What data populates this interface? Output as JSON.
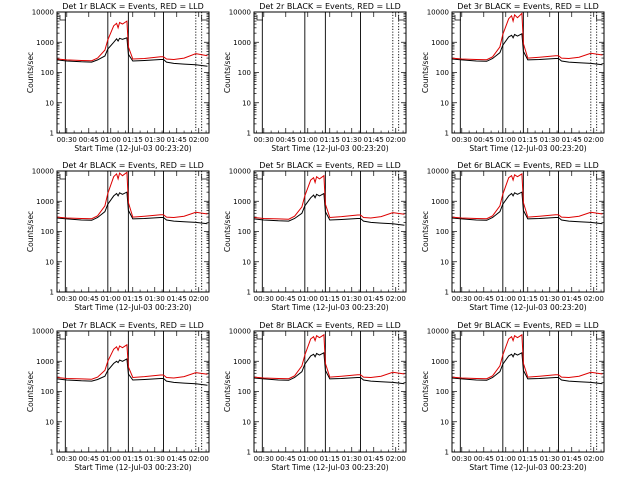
{
  "figure": {
    "ylabel": "Counts/sec",
    "xlabel": "Start Time (12-Jul-03 00:23:20)",
    "time_ticks": [
      "00:30",
      "00:45",
      "01:00",
      "01:15",
      "01:30",
      "01:45",
      "02:00"
    ],
    "y_ticks": [
      "1",
      "10",
      "100",
      "1000",
      "10000"
    ],
    "colors": {
      "events": "#000000",
      "lld": "#dd0000"
    }
  },
  "chart_data": [
    {
      "type": "line",
      "title": "Det 1r BLACK = Events, RED = LLD",
      "xlabel": "Start Time (12-Jul-03 00:23:20)",
      "ylabel": "Counts/sec",
      "xlim": [
        23.33,
        127
      ],
      "ylim": [
        1,
        10000
      ],
      "yscale": "log",
      "grid": false,
      "vlines_solid": [
        29,
        58,
        72,
        96
      ],
      "vlines_dotted": [
        118,
        122
      ],
      "series": [
        {
          "name": "Events",
          "x": [
            23.3,
            30,
            40,
            47,
            51,
            56,
            58,
            62,
            64,
            65,
            66,
            68,
            71,
            72,
            75,
            83,
            94,
            96,
            98,
            103,
            110,
            118,
            126
          ],
          "values": [
            260,
            240,
            225,
            220,
            260,
            350,
            600,
            1000,
            1300,
            1100,
            1350,
            1250,
            1400,
            400,
            240,
            250,
            270,
            270,
            220,
            200,
            190,
            180,
            160
          ]
        },
        {
          "name": "LLD",
          "x": [
            23.3,
            30,
            40,
            47,
            51,
            56,
            58,
            62,
            64,
            65,
            66,
            68,
            71,
            72,
            75,
            83,
            94,
            96,
            98,
            103,
            110,
            118,
            126
          ],
          "values": [
            280,
            260,
            250,
            245,
            300,
            550,
            1200,
            3500,
            4200,
            3000,
            4500,
            4000,
            5000,
            700,
            280,
            290,
            330,
            330,
            280,
            270,
            300,
            420,
            360
          ]
        }
      ]
    },
    {
      "type": "line",
      "title": "Det 2r BLACK = Events, RED = LLD",
      "xlabel": "Start Time (12-Jul-03 00:23:20)",
      "ylabel": "Counts/sec",
      "xlim": [
        23.33,
        127
      ],
      "ylim": [
        1,
        10000
      ],
      "yscale": "log",
      "grid": false,
      "vlines_solid": [
        29,
        58,
        72,
        96
      ],
      "vlines_dotted": [
        118,
        122
      ],
      "series": []
    },
    {
      "type": "line",
      "title": "Det 3r BLACK = Events, RED = LLD",
      "xlabel": "Start Time (12-Jul-03 00:23:20)",
      "ylabel": "Counts/sec",
      "xlim": [
        23.33,
        127
      ],
      "ylim": [
        1,
        10000
      ],
      "yscale": "log",
      "grid": false,
      "vlines_solid": [
        29,
        58,
        72,
        96
      ],
      "vlines_dotted": [
        118,
        122
      ],
      "series": [
        {
          "name": "Events",
          "x": [
            23.3,
            30,
            40,
            47,
            51,
            56,
            58,
            62,
            64,
            65,
            66,
            68,
            71,
            72,
            75,
            83,
            94,
            96,
            98,
            103,
            110,
            118,
            126
          ],
          "values": [
            280,
            260,
            240,
            235,
            290,
            450,
            800,
            1500,
            1700,
            1400,
            1800,
            1600,
            1900,
            500,
            260,
            270,
            290,
            290,
            240,
            220,
            210,
            200,
            180
          ]
        },
        {
          "name": "LLD",
          "x": [
            23.3,
            30,
            40,
            47,
            51,
            56,
            58,
            62,
            64,
            65,
            66,
            68,
            71,
            72,
            75,
            83,
            94,
            96,
            98,
            103,
            110,
            118,
            126
          ],
          "values": [
            300,
            280,
            270,
            265,
            330,
            700,
            1800,
            6000,
            7500,
            5000,
            8000,
            6500,
            9000,
            900,
            300,
            320,
            360,
            360,
            300,
            290,
            320,
            430,
            380
          ]
        }
      ]
    },
    {
      "type": "line",
      "title": "Det 4r BLACK = Events, RED = LLD",
      "xlabel": "Start Time (12-Jul-03 00:23:20)",
      "ylabel": "Counts/sec",
      "xlim": [
        23.33,
        127
      ],
      "ylim": [
        1,
        10000
      ],
      "yscale": "log",
      "grid": false,
      "vlines_solid": [
        29,
        58,
        72,
        96
      ],
      "vlines_dotted": [
        118,
        122
      ],
      "series": [
        {
          "name": "Events",
          "x": [
            23.3,
            30,
            40,
            47,
            51,
            56,
            58,
            62,
            64,
            65,
            66,
            68,
            71,
            72,
            75,
            83,
            94,
            96,
            98,
            103,
            110,
            118,
            126
          ],
          "values": [
            280,
            260,
            240,
            235,
            290,
            450,
            800,
            1500,
            1800,
            1500,
            1900,
            1700,
            2000,
            500,
            260,
            270,
            290,
            290,
            240,
            220,
            210,
            200,
            180
          ]
        },
        {
          "name": "LLD",
          "x": [
            23.3,
            30,
            40,
            47,
            51,
            56,
            58,
            62,
            64,
            65,
            66,
            68,
            71,
            72,
            75,
            83,
            94,
            96,
            98,
            103,
            110,
            118,
            126
          ],
          "values": [
            300,
            280,
            270,
            265,
            330,
            700,
            1800,
            6500,
            8000,
            5500,
            8500,
            7000,
            9000,
            900,
            300,
            320,
            360,
            360,
            300,
            290,
            320,
            430,
            380
          ]
        }
      ]
    },
    {
      "type": "line",
      "title": "Det 5r BLACK = Events, RED = LLD",
      "xlabel": "Start Time (12-Jul-03 00:23:20)",
      "ylabel": "Counts/sec",
      "xlim": [
        23.33,
        127
      ],
      "ylim": [
        1,
        10000
      ],
      "yscale": "log",
      "grid": false,
      "vlines_solid": [
        29,
        58,
        72,
        96
      ],
      "vlines_dotted": [
        118,
        122
      ],
      "series": [
        {
          "name": "Events",
          "x": [
            23.3,
            30,
            40,
            47,
            51,
            56,
            58,
            62,
            64,
            65,
            66,
            68,
            71,
            72,
            75,
            83,
            94,
            96,
            98,
            103,
            110,
            118,
            126
          ],
          "values": [
            260,
            240,
            225,
            220,
            270,
            400,
            700,
            1300,
            1600,
            1300,
            1700,
            1500,
            1800,
            450,
            240,
            250,
            270,
            270,
            220,
            200,
            190,
            180,
            160
          ]
        },
        {
          "name": "LLD",
          "x": [
            23.3,
            30,
            40,
            47,
            51,
            56,
            58,
            62,
            64,
            65,
            66,
            68,
            71,
            72,
            75,
            83,
            94,
            96,
            98,
            103,
            110,
            118,
            126
          ],
          "values": [
            290,
            270,
            260,
            255,
            320,
            650,
            1500,
            5000,
            6000,
            4200,
            6500,
            5500,
            7000,
            800,
            290,
            310,
            350,
            350,
            290,
            280,
            310,
            420,
            370
          ]
        }
      ]
    },
    {
      "type": "line",
      "title": "Det 6r BLACK = Events, RED = LLD",
      "xlabel": "Start Time (12-Jul-03 00:23:20)",
      "ylabel": "Counts/sec",
      "xlim": [
        23.33,
        127
      ],
      "ylim": [
        1,
        10000
      ],
      "yscale": "log",
      "grid": false,
      "vlines_solid": [
        29,
        58,
        72,
        96
      ],
      "vlines_dotted": [
        118,
        122
      ],
      "series": [
        {
          "name": "Events",
          "x": [
            23.3,
            30,
            40,
            47,
            51,
            56,
            58,
            62,
            64,
            65,
            66,
            68,
            71,
            72,
            75,
            83,
            94,
            96,
            98,
            103,
            110,
            118,
            126
          ],
          "values": [
            280,
            260,
            240,
            235,
            290,
            450,
            800,
            1500,
            1800,
            1500,
            1900,
            1700,
            2000,
            500,
            260,
            270,
            290,
            290,
            240,
            220,
            210,
            200,
            180
          ]
        },
        {
          "name": "LLD",
          "x": [
            23.3,
            30,
            40,
            47,
            51,
            56,
            58,
            62,
            64,
            65,
            66,
            68,
            71,
            72,
            75,
            83,
            94,
            96,
            98,
            103,
            110,
            118,
            126
          ],
          "values": [
            300,
            280,
            270,
            265,
            330,
            700,
            1700,
            6000,
            7000,
            5000,
            7500,
            6500,
            8000,
            900,
            300,
            320,
            360,
            360,
            300,
            290,
            320,
            430,
            380
          ]
        }
      ]
    },
    {
      "type": "line",
      "title": "Det 7r BLACK = Events, RED = LLD",
      "xlabel": "Start Time (12-Jul-03 00:23:20)",
      "ylabel": "Counts/sec",
      "xlim": [
        23.33,
        127
      ],
      "ylim": [
        1,
        10000
      ],
      "yscale": "log",
      "grid": false,
      "vlines_solid": [
        29,
        58,
        72,
        96
      ],
      "vlines_dotted": [
        118,
        122
      ],
      "series": [
        {
          "name": "Events",
          "x": [
            23.3,
            30,
            40,
            47,
            51,
            56,
            58,
            62,
            64,
            65,
            66,
            68,
            71,
            72,
            75,
            83,
            94,
            96,
            98,
            103,
            110,
            118,
            126
          ],
          "values": [
            260,
            240,
            225,
            220,
            250,
            320,
            500,
            850,
            1000,
            900,
            1100,
            1000,
            1200,
            380,
            240,
            250,
            270,
            270,
            220,
            200,
            190,
            180,
            160
          ]
        },
        {
          "name": "LLD",
          "x": [
            23.3,
            30,
            40,
            47,
            51,
            56,
            58,
            62,
            64,
            65,
            66,
            68,
            71,
            72,
            75,
            83,
            94,
            96,
            98,
            103,
            110,
            118,
            126
          ],
          "values": [
            290,
            270,
            260,
            255,
            300,
            500,
            1000,
            2500,
            3000,
            2300,
            3200,
            2800,
            3500,
            650,
            290,
            310,
            350,
            350,
            290,
            280,
            310,
            420,
            370
          ]
        }
      ]
    },
    {
      "type": "line",
      "title": "Det 8r BLACK = Events, RED = LLD",
      "xlabel": "Start Time (12-Jul-03 00:23:20)",
      "ylabel": "Counts/sec",
      "xlim": [
        23.33,
        127
      ],
      "ylim": [
        1,
        10000
      ],
      "yscale": "log",
      "grid": false,
      "vlines_solid": [
        29,
        58,
        72,
        96
      ],
      "vlines_dotted": [
        118,
        122
      ],
      "series": [
        {
          "name": "Events",
          "x": [
            23.3,
            30,
            40,
            47,
            51,
            56,
            58,
            62,
            64,
            65,
            66,
            68,
            71,
            72,
            75,
            83,
            94,
            96,
            98,
            103,
            110,
            118,
            126
          ],
          "values": [
            280,
            260,
            240,
            235,
            290,
            450,
            800,
            1500,
            1700,
            1400,
            1800,
            1600,
            1900,
            500,
            260,
            270,
            290,
            290,
            240,
            220,
            210,
            200,
            180
          ]
        },
        {
          "name": "LLD",
          "x": [
            23.3,
            30,
            40,
            47,
            51,
            56,
            58,
            62,
            64,
            65,
            66,
            68,
            71,
            72,
            75,
            83,
            94,
            96,
            98,
            103,
            110,
            118,
            126
          ],
          "values": [
            300,
            280,
            270,
            265,
            330,
            700,
            1600,
            5500,
            6500,
            4800,
            7000,
            6000,
            7500,
            850,
            300,
            320,
            360,
            360,
            300,
            290,
            320,
            430,
            380
          ]
        }
      ]
    },
    {
      "type": "line",
      "title": "Det 9r BLACK = Events, RED = LLD",
      "xlabel": "Start Time (12-Jul-03 00:23:20)",
      "ylabel": "Counts/sec",
      "xlim": [
        23.33,
        127
      ],
      "ylim": [
        1,
        10000
      ],
      "yscale": "log",
      "grid": false,
      "vlines_solid": [
        29,
        58,
        72,
        96
      ],
      "vlines_dotted": [
        118,
        122
      ],
      "series": [
        {
          "name": "Events",
          "x": [
            23.3,
            30,
            40,
            47,
            51,
            56,
            58,
            62,
            64,
            65,
            66,
            68,
            71,
            72,
            75,
            83,
            94,
            96,
            98,
            103,
            110,
            118,
            126
          ],
          "values": [
            280,
            260,
            240,
            235,
            290,
            450,
            800,
            1500,
            1700,
            1400,
            1800,
            1600,
            1900,
            500,
            260,
            270,
            290,
            290,
            240,
            220,
            210,
            200,
            180
          ]
        },
        {
          "name": "LLD",
          "x": [
            23.3,
            30,
            40,
            47,
            51,
            56,
            58,
            62,
            64,
            65,
            66,
            68,
            71,
            72,
            75,
            83,
            94,
            96,
            98,
            103,
            110,
            118,
            126
          ],
          "values": [
            300,
            280,
            270,
            265,
            330,
            700,
            1600,
            5500,
            6500,
            4800,
            7000,
            6000,
            7500,
            850,
            300,
            320,
            360,
            360,
            300,
            290,
            320,
            430,
            380
          ]
        }
      ]
    }
  ]
}
